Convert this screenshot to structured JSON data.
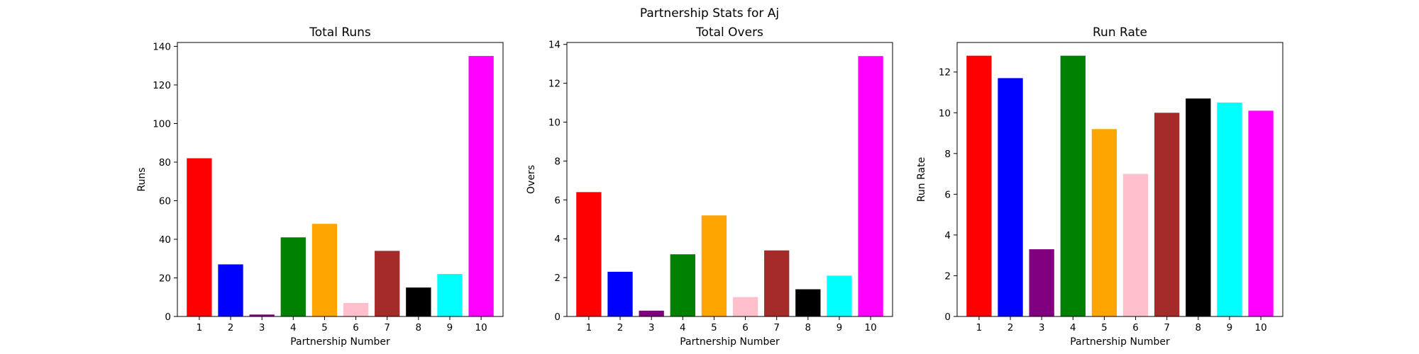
{
  "figure": {
    "title": "Partnership Stats for Aj"
  },
  "chart_data": [
    {
      "type": "bar",
      "title": "Total Runs",
      "xlabel": "Partnership Number",
      "ylabel": "Runs",
      "categories": [
        "1",
        "2",
        "3",
        "4",
        "5",
        "6",
        "7",
        "8",
        "9",
        "10"
      ],
      "values": [
        82,
        27,
        1,
        41,
        48,
        7,
        34,
        15,
        22,
        135
      ],
      "ylim": [
        0,
        142
      ],
      "yticks": [
        0,
        20,
        40,
        60,
        80,
        100,
        120,
        140
      ],
      "colors": [
        "#ff0000",
        "#0000ff",
        "#800080",
        "#008000",
        "#ffa500",
        "#ffc0cb",
        "#a52a2a",
        "#000000",
        "#00ffff",
        "#ff00ff"
      ],
      "grid": false
    },
    {
      "type": "bar",
      "title": "Total Overs",
      "xlabel": "Partnership Number",
      "ylabel": "Overs",
      "categories": [
        "1",
        "2",
        "3",
        "4",
        "5",
        "6",
        "7",
        "8",
        "9",
        "10"
      ],
      "values": [
        6.4,
        2.3,
        0.3,
        3.2,
        5.2,
        1.0,
        3.4,
        1.4,
        2.1,
        13.4
      ],
      "ylim": [
        0,
        14.1
      ],
      "yticks": [
        0,
        2,
        4,
        6,
        8,
        10,
        12,
        14
      ],
      "colors": [
        "#ff0000",
        "#0000ff",
        "#800080",
        "#008000",
        "#ffa500",
        "#ffc0cb",
        "#a52a2a",
        "#000000",
        "#00ffff",
        "#ff00ff"
      ],
      "grid": false
    },
    {
      "type": "bar",
      "title": "Run Rate",
      "xlabel": "Partnership Number",
      "ylabel": "Run Rate",
      "categories": [
        "1",
        "2",
        "3",
        "4",
        "5",
        "6",
        "7",
        "8",
        "9",
        "10"
      ],
      "values": [
        12.8,
        11.7,
        3.3,
        12.8,
        9.2,
        7.0,
        10.0,
        10.7,
        10.5,
        10.1
      ],
      "ylim": [
        0,
        13.45
      ],
      "yticks": [
        0,
        2,
        4,
        6,
        8,
        10,
        12
      ],
      "colors": [
        "#ff0000",
        "#0000ff",
        "#800080",
        "#008000",
        "#ffa500",
        "#ffc0cb",
        "#a52a2a",
        "#000000",
        "#00ffff",
        "#ff00ff"
      ],
      "grid": false
    }
  ]
}
